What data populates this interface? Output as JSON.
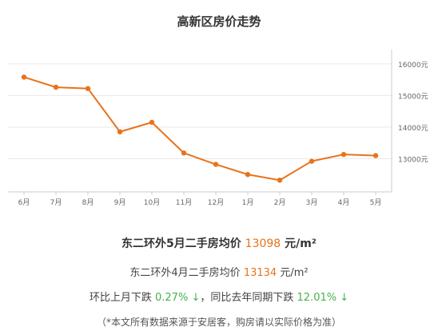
{
  "chart_data": {
    "type": "line",
    "title": "高新区房价走势",
    "categories": [
      "6月",
      "7月",
      "8月",
      "9月",
      "10月",
      "11月",
      "12月",
      "1月",
      "2月",
      "3月",
      "4月",
      "5月"
    ],
    "series": [
      {
        "values": [
          15580,
          15260,
          15220,
          13850,
          14150,
          13180,
          12820,
          12500,
          12320,
          12920,
          13134,
          13098
        ]
      }
    ],
    "y_ticks": [
      "16000元",
      "15000元",
      "14000元",
      "13000元"
    ],
    "ylim": [
      11950,
      16300
    ],
    "grid": "horizontal",
    "colors": {
      "line": "#e8731c",
      "grid": "#e9e9e9",
      "axis": "#cccccc"
    }
  },
  "summary": {
    "may_prefix": "东二环外5月二手房均价",
    "may_price": "13098",
    "may_unit": "元/m²",
    "april_prefix": "东二环外4月二手房均价",
    "april_price": "13134",
    "april_unit": "元/m²",
    "mom_prefix": "环比上月下跌",
    "mom_value": "0.27%",
    "mom_arrow": "↓",
    "yoy_sep": "，同比去年同期下跌",
    "yoy_value": "12.01%",
    "yoy_arrow": "↓",
    "note": "（*本文所有数据来源于安居客，购房请以实际价格为准）"
  }
}
